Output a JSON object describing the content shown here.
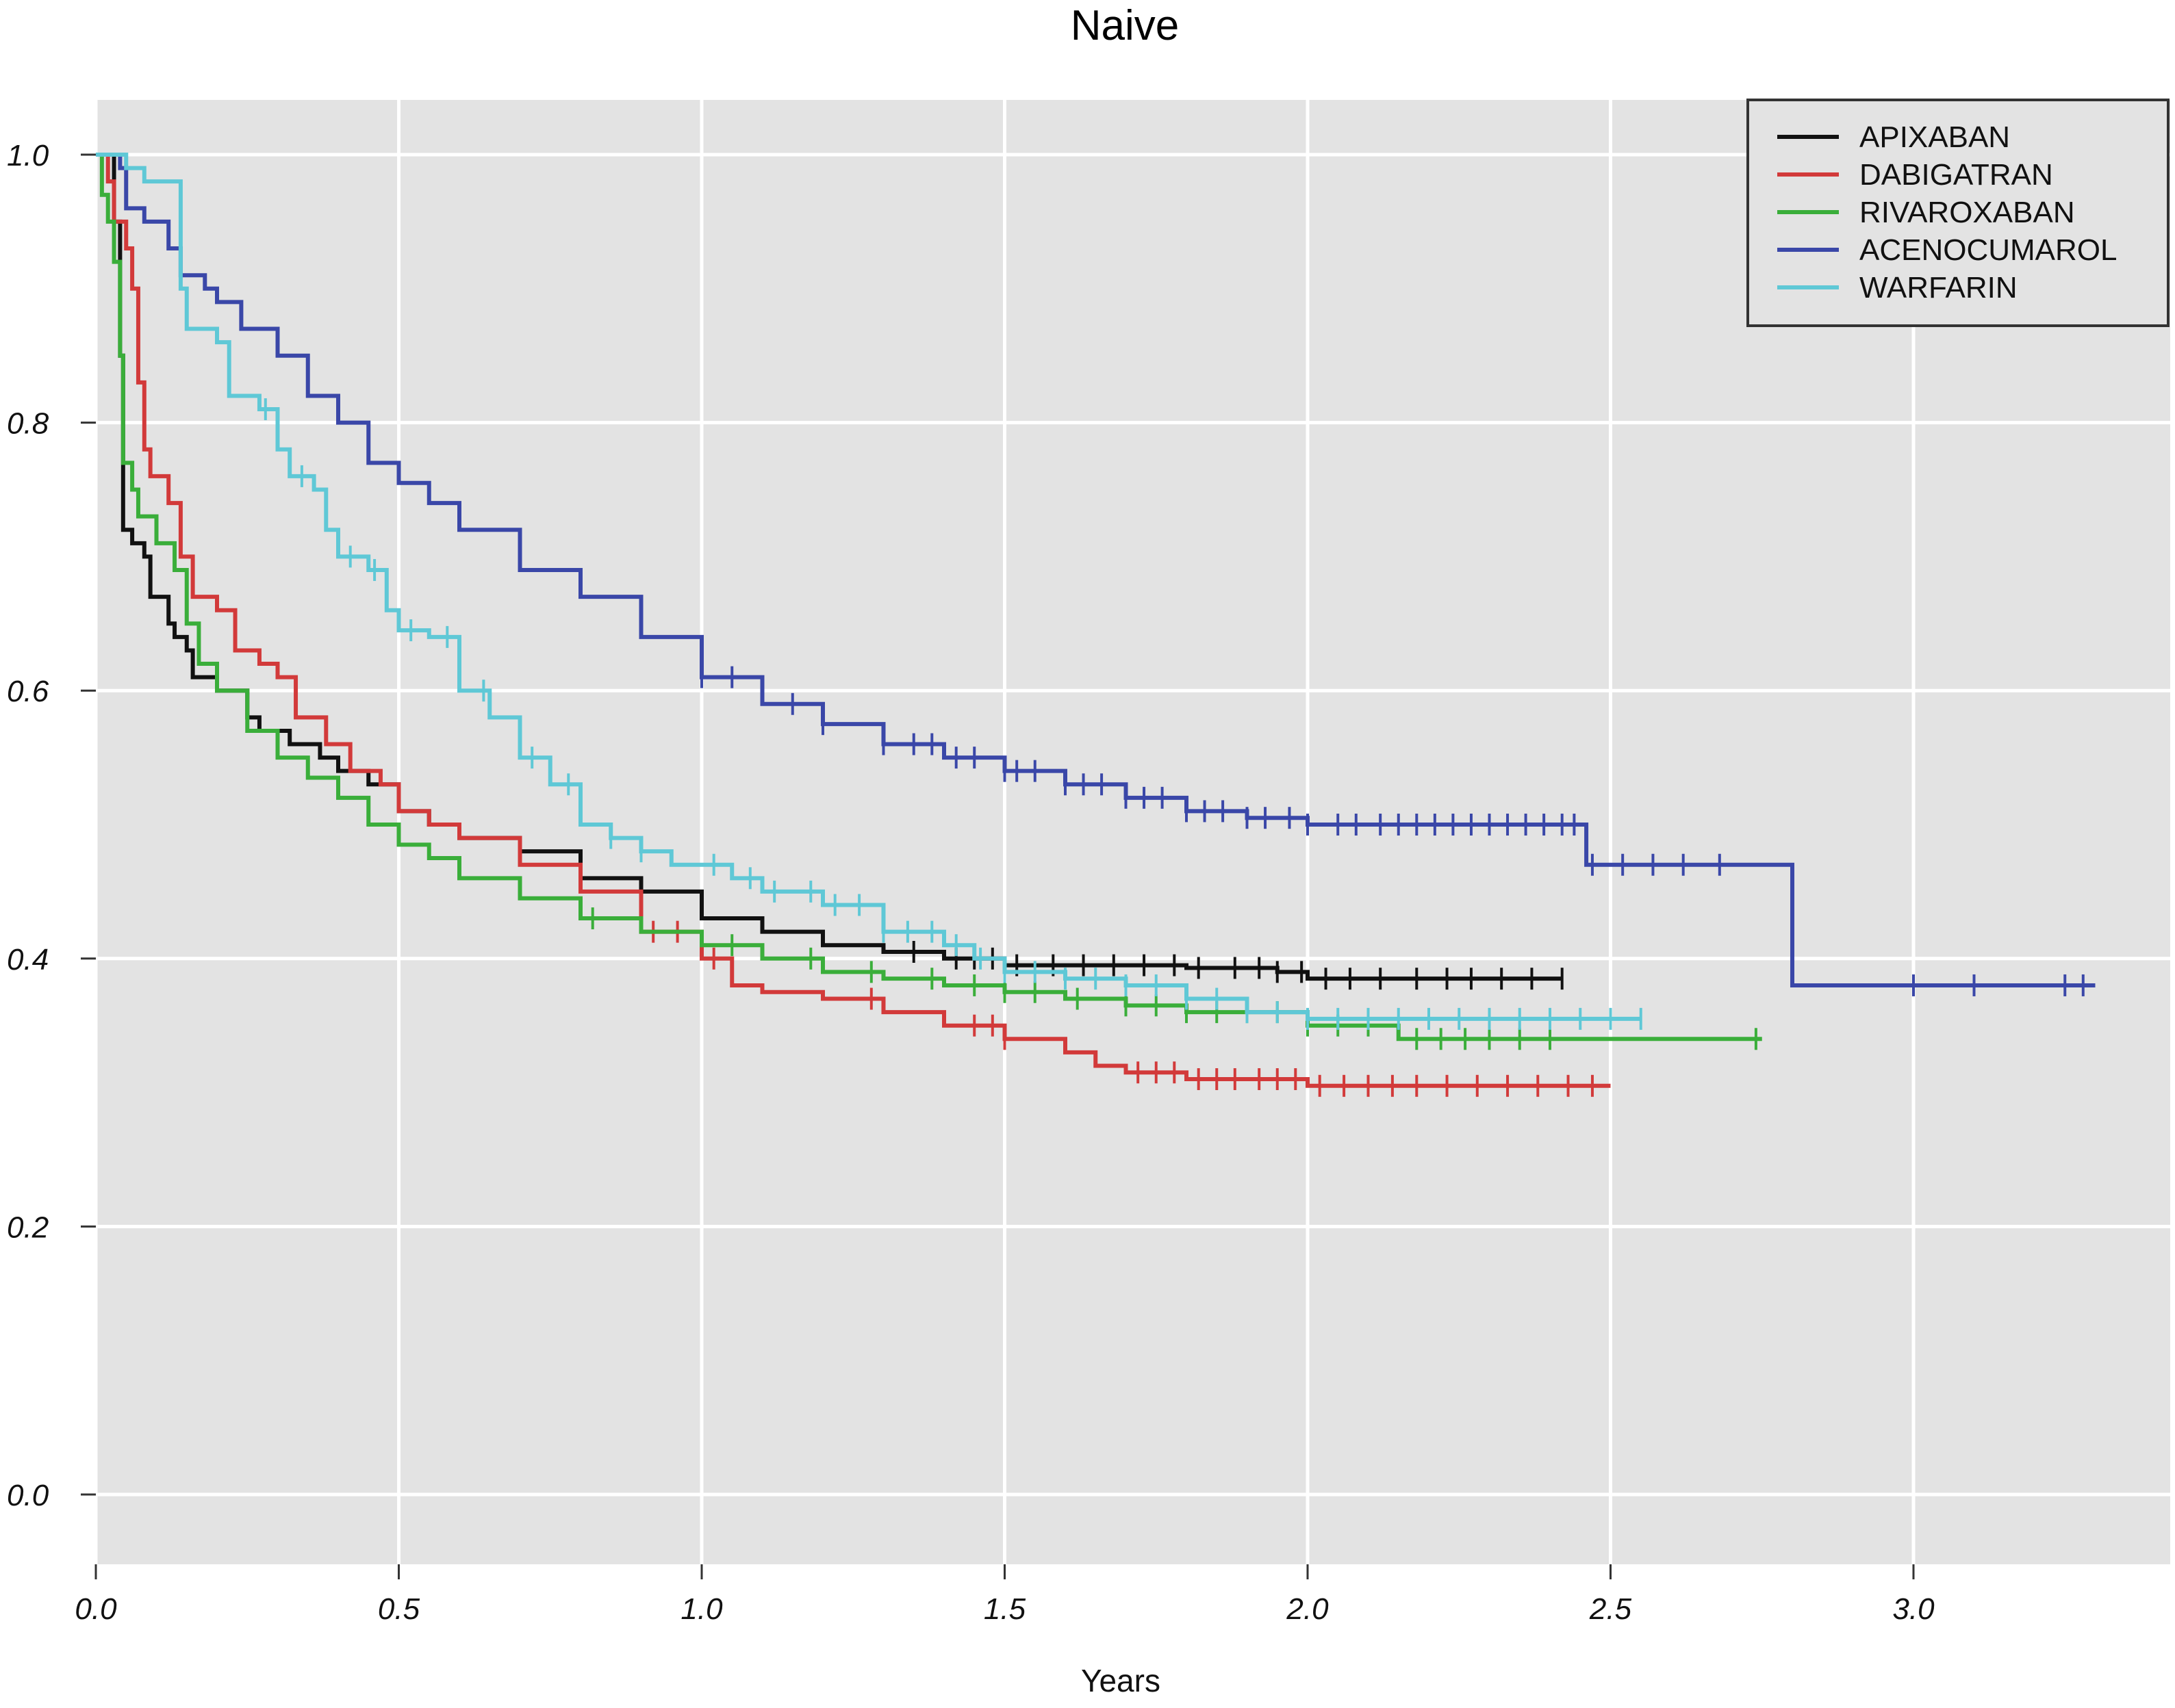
{
  "chart_data": {
    "type": "line",
    "title": "Naive",
    "xlabel": "Years",
    "ylabel": "",
    "xlim": [
      0,
      3.3
    ],
    "ylim": [
      0,
      1.0
    ],
    "x_ticks": [
      "0.0",
      "0.5",
      "1.0",
      "1.5",
      "2.0",
      "2.5",
      "3.0"
    ],
    "y_ticks": [
      "0.0",
      "0.2",
      "0.4",
      "0.6",
      "0.8",
      "1.0"
    ],
    "grid": true,
    "legend_position": "top-right",
    "series": [
      {
        "name": "APIXABAN",
        "color": "#111111",
        "points": [
          [
            0,
            1.0
          ],
          [
            0.03,
            0.95
          ],
          [
            0.04,
            0.85
          ],
          [
            0.045,
            0.72
          ],
          [
            0.06,
            0.71
          ],
          [
            0.08,
            0.7
          ],
          [
            0.09,
            0.67
          ],
          [
            0.12,
            0.65
          ],
          [
            0.13,
            0.64
          ],
          [
            0.15,
            0.63
          ],
          [
            0.16,
            0.61
          ],
          [
            0.2,
            0.6
          ],
          [
            0.25,
            0.58
          ],
          [
            0.27,
            0.57
          ],
          [
            0.32,
            0.56
          ],
          [
            0.37,
            0.55
          ],
          [
            0.4,
            0.54
          ],
          [
            0.45,
            0.53
          ],
          [
            0.5,
            0.51
          ],
          [
            0.55,
            0.5
          ],
          [
            0.6,
            0.49
          ],
          [
            0.7,
            0.48
          ],
          [
            0.8,
            0.46
          ],
          [
            0.9,
            0.45
          ],
          [
            1.0,
            0.43
          ],
          [
            1.1,
            0.42
          ],
          [
            1.2,
            0.41
          ],
          [
            1.3,
            0.405
          ],
          [
            1.4,
            0.4
          ],
          [
            1.5,
            0.395
          ],
          [
            1.6,
            0.395
          ],
          [
            1.8,
            0.393
          ],
          [
            1.95,
            0.39
          ],
          [
            2.0,
            0.385
          ],
          [
            2.2,
            0.385
          ],
          [
            2.42,
            0.385
          ]
        ],
        "censor_x": [
          1.35,
          1.42,
          1.45,
          1.48,
          1.52,
          1.58,
          1.63,
          1.68,
          1.73,
          1.78,
          1.82,
          1.88,
          1.92,
          1.95,
          1.99,
          2.03,
          2.07,
          2.12,
          2.18,
          2.23,
          2.27,
          2.32,
          2.37,
          2.42
        ]
      },
      {
        "name": "DABIGATRAN",
        "color": "#d23a3a",
        "points": [
          [
            0,
            1.0
          ],
          [
            0.02,
            0.98
          ],
          [
            0.03,
            0.95
          ],
          [
            0.05,
            0.93
          ],
          [
            0.06,
            0.9
          ],
          [
            0.07,
            0.83
          ],
          [
            0.08,
            0.78
          ],
          [
            0.09,
            0.76
          ],
          [
            0.12,
            0.74
          ],
          [
            0.14,
            0.7
          ],
          [
            0.16,
            0.67
          ],
          [
            0.2,
            0.66
          ],
          [
            0.23,
            0.63
          ],
          [
            0.27,
            0.62
          ],
          [
            0.3,
            0.61
          ],
          [
            0.33,
            0.58
          ],
          [
            0.38,
            0.56
          ],
          [
            0.42,
            0.54
          ],
          [
            0.47,
            0.53
          ],
          [
            0.5,
            0.51
          ],
          [
            0.55,
            0.5
          ],
          [
            0.6,
            0.49
          ],
          [
            0.7,
            0.47
          ],
          [
            0.8,
            0.45
          ],
          [
            0.9,
            0.42
          ],
          [
            1.0,
            0.4
          ],
          [
            1.05,
            0.38
          ],
          [
            1.1,
            0.375
          ],
          [
            1.2,
            0.37
          ],
          [
            1.3,
            0.36
          ],
          [
            1.4,
            0.35
          ],
          [
            1.5,
            0.34
          ],
          [
            1.6,
            0.33
          ],
          [
            1.65,
            0.32
          ],
          [
            1.7,
            0.315
          ],
          [
            1.8,
            0.31
          ],
          [
            2.0,
            0.305
          ],
          [
            2.5,
            0.305
          ]
        ],
        "censor_x": [
          0.92,
          0.96,
          1.02,
          1.28,
          1.45,
          1.48,
          1.5,
          1.72,
          1.75,
          1.78,
          1.82,
          1.85,
          1.88,
          1.92,
          1.95,
          1.98,
          2.02,
          2.06,
          2.1,
          2.14,
          2.18,
          2.23,
          2.28,
          2.33,
          2.38,
          2.43,
          2.47
        ]
      },
      {
        "name": "RIVAROXABAN",
        "color": "#3aae3a",
        "points": [
          [
            0,
            1.0
          ],
          [
            0.01,
            0.97
          ],
          [
            0.02,
            0.95
          ],
          [
            0.03,
            0.92
          ],
          [
            0.04,
            0.85
          ],
          [
            0.045,
            0.77
          ],
          [
            0.06,
            0.75
          ],
          [
            0.07,
            0.73
          ],
          [
            0.1,
            0.71
          ],
          [
            0.13,
            0.69
          ],
          [
            0.15,
            0.65
          ],
          [
            0.17,
            0.62
          ],
          [
            0.2,
            0.6
          ],
          [
            0.25,
            0.57
          ],
          [
            0.3,
            0.55
          ],
          [
            0.35,
            0.535
          ],
          [
            0.4,
            0.52
          ],
          [
            0.45,
            0.5
          ],
          [
            0.5,
            0.485
          ],
          [
            0.55,
            0.475
          ],
          [
            0.6,
            0.46
          ],
          [
            0.7,
            0.445
          ],
          [
            0.8,
            0.43
          ],
          [
            0.9,
            0.42
          ],
          [
            1.0,
            0.41
          ],
          [
            1.1,
            0.4
          ],
          [
            1.2,
            0.39
          ],
          [
            1.3,
            0.385
          ],
          [
            1.4,
            0.38
          ],
          [
            1.5,
            0.375
          ],
          [
            1.6,
            0.37
          ],
          [
            1.7,
            0.365
          ],
          [
            1.8,
            0.36
          ],
          [
            2.0,
            0.35
          ],
          [
            2.15,
            0.34
          ],
          [
            2.75,
            0.34
          ]
        ],
        "censor_x": [
          0.82,
          1.05,
          1.18,
          1.28,
          1.38,
          1.45,
          1.5,
          1.55,
          1.62,
          1.7,
          1.75,
          1.8,
          1.85,
          1.9,
          1.95,
          2.0,
          2.05,
          2.1,
          2.18,
          2.22,
          2.26,
          2.3,
          2.35,
          2.4,
          2.74
        ]
      },
      {
        "name": "ACENOCUMAROL",
        "color": "#3a47a8",
        "points": [
          [
            0,
            1.0
          ],
          [
            0.03,
            1.0
          ],
          [
            0.04,
            0.99
          ],
          [
            0.05,
            0.96
          ],
          [
            0.08,
            0.95
          ],
          [
            0.12,
            0.93
          ],
          [
            0.14,
            0.91
          ],
          [
            0.18,
            0.9
          ],
          [
            0.2,
            0.89
          ],
          [
            0.24,
            0.87
          ],
          [
            0.3,
            0.85
          ],
          [
            0.35,
            0.82
          ],
          [
            0.4,
            0.8
          ],
          [
            0.45,
            0.77
          ],
          [
            0.5,
            0.755
          ],
          [
            0.55,
            0.74
          ],
          [
            0.6,
            0.72
          ],
          [
            0.7,
            0.69
          ],
          [
            0.8,
            0.67
          ],
          [
            0.9,
            0.64
          ],
          [
            1.0,
            0.61
          ],
          [
            1.1,
            0.59
          ],
          [
            1.2,
            0.575
          ],
          [
            1.3,
            0.56
          ],
          [
            1.4,
            0.55
          ],
          [
            1.5,
            0.54
          ],
          [
            1.6,
            0.53
          ],
          [
            1.7,
            0.52
          ],
          [
            1.8,
            0.51
          ],
          [
            1.9,
            0.505
          ],
          [
            2.0,
            0.5
          ],
          [
            2.2,
            0.5
          ],
          [
            2.4,
            0.5
          ],
          [
            2.45,
            0.5
          ],
          [
            2.46,
            0.47
          ],
          [
            2.79,
            0.47
          ],
          [
            2.8,
            0.38
          ],
          [
            3.3,
            0.38
          ]
        ],
        "censor_x": [
          1.0,
          1.05,
          1.15,
          1.2,
          1.3,
          1.35,
          1.38,
          1.42,
          1.45,
          1.5,
          1.52,
          1.55,
          1.6,
          1.63,
          1.66,
          1.7,
          1.73,
          1.76,
          1.8,
          1.83,
          1.86,
          1.9,
          1.93,
          1.97,
          2.0,
          2.05,
          2.08,
          2.12,
          2.15,
          2.18,
          2.21,
          2.24,
          2.27,
          2.3,
          2.33,
          2.36,
          2.39,
          2.42,
          2.44,
          2.47,
          2.52,
          2.57,
          2.62,
          2.68,
          3.0,
          3.1,
          3.25,
          3.28
        ]
      },
      {
        "name": "WARFARIN",
        "color": "#5fc8d6",
        "points": [
          [
            0,
            1.0
          ],
          [
            0.05,
            0.99
          ],
          [
            0.08,
            0.98
          ],
          [
            0.12,
            0.98
          ],
          [
            0.14,
            0.9
          ],
          [
            0.15,
            0.87
          ],
          [
            0.2,
            0.86
          ],
          [
            0.22,
            0.82
          ],
          [
            0.27,
            0.81
          ],
          [
            0.3,
            0.78
          ],
          [
            0.32,
            0.76
          ],
          [
            0.36,
            0.75
          ],
          [
            0.38,
            0.72
          ],
          [
            0.4,
            0.7
          ],
          [
            0.45,
            0.69
          ],
          [
            0.48,
            0.66
          ],
          [
            0.5,
            0.645
          ],
          [
            0.55,
            0.64
          ],
          [
            0.6,
            0.6
          ],
          [
            0.65,
            0.58
          ],
          [
            0.7,
            0.55
          ],
          [
            0.75,
            0.53
          ],
          [
            0.8,
            0.5
          ],
          [
            0.85,
            0.49
          ],
          [
            0.9,
            0.48
          ],
          [
            0.95,
            0.47
          ],
          [
            1.0,
            0.47
          ],
          [
            1.05,
            0.46
          ],
          [
            1.1,
            0.45
          ],
          [
            1.2,
            0.44
          ],
          [
            1.3,
            0.42
          ],
          [
            1.4,
            0.41
          ],
          [
            1.45,
            0.4
          ],
          [
            1.5,
            0.39
          ],
          [
            1.6,
            0.385
          ],
          [
            1.7,
            0.38
          ],
          [
            1.8,
            0.37
          ],
          [
            1.9,
            0.36
          ],
          [
            2.0,
            0.355
          ],
          [
            2.55,
            0.355
          ]
        ],
        "censor_x": [
          0.28,
          0.34,
          0.42,
          0.46,
          0.52,
          0.58,
          0.64,
          0.72,
          0.78,
          0.85,
          0.9,
          1.02,
          1.08,
          1.12,
          1.18,
          1.22,
          1.26,
          1.3,
          1.34,
          1.38,
          1.42,
          1.46,
          1.5,
          1.55,
          1.6,
          1.65,
          1.7,
          1.75,
          1.8,
          1.85,
          1.9,
          1.95,
          2.0,
          2.05,
          2.1,
          2.15,
          2.2,
          2.25,
          2.3,
          2.35,
          2.4,
          2.45,
          2.5,
          2.55
        ]
      }
    ]
  }
}
